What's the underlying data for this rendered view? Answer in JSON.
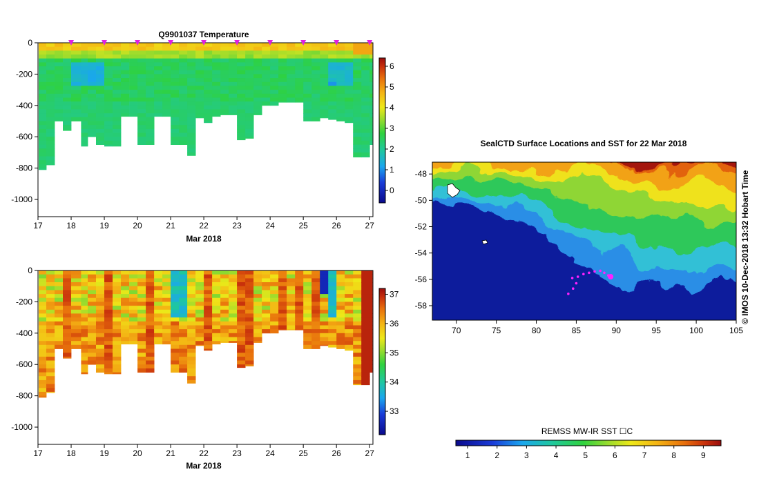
{
  "chart_data": [
    {
      "type": "heatmap",
      "title": "Q9901037  Temperature",
      "xlabel": "Mar 2018",
      "ylabel": "",
      "x_ticks": [
        "17",
        "18",
        "19",
        "20",
        "21",
        "22",
        "23",
        "24",
        "25",
        "26",
        "27"
      ],
      "xlim": [
        17,
        27.1
      ],
      "y_ticks": [
        "0",
        "-200",
        "-400",
        "-600",
        "-800",
        "-1000"
      ],
      "ylim": [
        -1110,
        0
      ],
      "colorbar_ticks": [
        "0",
        "1",
        "2",
        "3",
        "4",
        "5",
        "6"
      ],
      "colorbar_range": [
        -0.6,
        6.4
      ],
      "profile_times": [
        17.02,
        17.25,
        17.5,
        17.75,
        18.0,
        18.3,
        18.5,
        18.75,
        19.0,
        19.25,
        19.5,
        19.75,
        20.0,
        20.25,
        20.5,
        20.75,
        21.0,
        21.25,
        21.5,
        21.75,
        22.0,
        22.25,
        22.5,
        22.75,
        23.0,
        23.25,
        23.5,
        23.75,
        24.0,
        24.25,
        24.5,
        24.75,
        25.0,
        25.25,
        25.5,
        25.75,
        26.0,
        26.25,
        26.5,
        26.75,
        27.0
      ],
      "profile_max_depths": [
        810,
        780,
        500,
        560,
        500,
        660,
        600,
        650,
        660,
        660,
        470,
        470,
        650,
        650,
        470,
        470,
        650,
        650,
        720,
        480,
        510,
        470,
        460,
        460,
        620,
        610,
        460,
        400,
        400,
        380,
        380,
        380,
        500,
        500,
        480,
        490,
        500,
        510,
        730,
        730,
        650
      ],
      "surface_markers": [
        18.0,
        19.0,
        20.0,
        21.0,
        22.0,
        23.0,
        24.0,
        25.0,
        26.0,
        27.0
      ]
    },
    {
      "type": "heatmap",
      "title": "",
      "xlabel": "Mar 2018",
      "ylabel": "",
      "x_ticks": [
        "17",
        "18",
        "19",
        "20",
        "21",
        "22",
        "23",
        "24",
        "25",
        "26",
        "27"
      ],
      "xlim": [
        17,
        27.1
      ],
      "y_ticks": [
        "0",
        "-200",
        "-400",
        "-600",
        "-800",
        "-1000"
      ],
      "ylim": [
        -1110,
        0
      ],
      "colorbar_ticks": [
        "33",
        "34",
        "35",
        "36",
        "37"
      ],
      "colorbar_range": [
        32.2,
        37.2
      ]
    },
    {
      "type": "heatmap",
      "title": "SealCTD Surface Locations and SST for 22 Mar 2018",
      "xlabel": "",
      "ylabel": "",
      "x_ticks": [
        "70",
        "75",
        "80",
        "85",
        "90",
        "95",
        "100",
        "105"
      ],
      "xlim": [
        67,
        105
      ],
      "y_ticks": [
        "-48",
        "-50",
        "-52",
        "-54",
        "-56",
        "-58"
      ],
      "ylim": [
        -59.1,
        -47.1
      ],
      "colorbar_label": "REMSS MW-IR SST ☐C",
      "colorbar_ticks": [
        "1",
        "2",
        "3",
        "4",
        "5",
        "6",
        "7",
        "8",
        "9"
      ],
      "colorbar_range": [
        0.6,
        9.6
      ],
      "track_points": [
        [
          84.5,
          -55.9
        ],
        [
          85.2,
          -55.8
        ],
        [
          85.9,
          -55.6
        ],
        [
          86.6,
          -55.5
        ],
        [
          87.3,
          -55.4
        ],
        [
          88.0,
          -55.35
        ],
        [
          88.5,
          -55.5
        ],
        [
          89.0,
          -55.7
        ],
        [
          89.3,
          -55.8
        ],
        [
          85.0,
          -56.3
        ],
        [
          84.6,
          -56.7
        ],
        [
          84.0,
          -57.1
        ]
      ],
      "latest_position": [
        89.3,
        -55.8
      ]
    }
  ],
  "side_text": "©  IMOS 10-Dec-2018 13:32 Hobart Time"
}
